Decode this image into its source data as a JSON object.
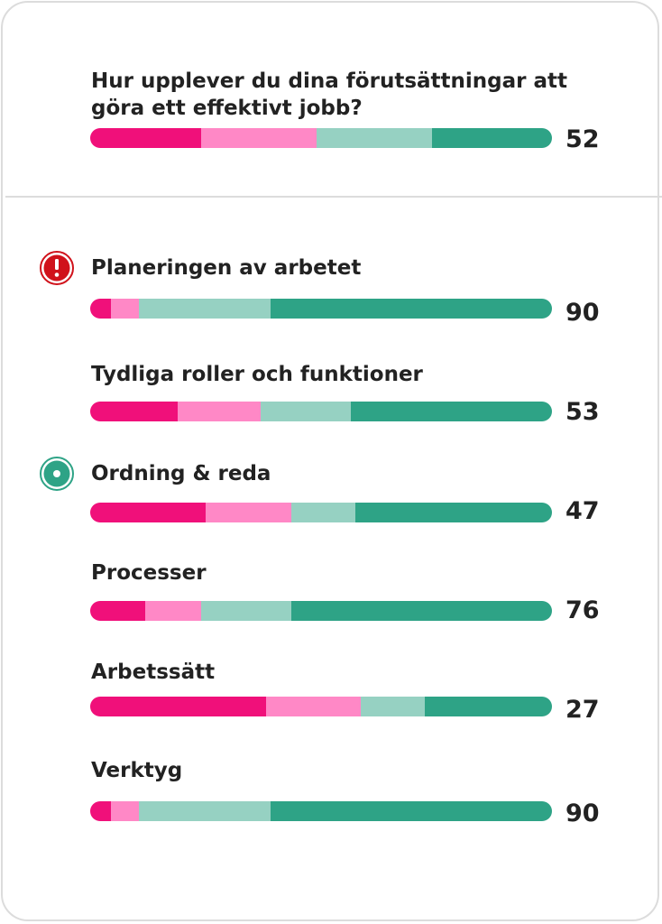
{
  "colors": {
    "very_negative": "#f0107a",
    "negative": "#ff88c6",
    "positive": "#96d1c2",
    "very_positive": "#2ea386",
    "alert": "#d0121b",
    "highlight": "#2ea386"
  },
  "question": {
    "title": "Hur upplever du dina förutsättningar att göra ett effektivt jobb?",
    "score": "52",
    "distribution": [
      24,
      25,
      25,
      26
    ]
  },
  "items": [
    {
      "label": "Planeringen av arbetet",
      "score": "90",
      "icon": "alert-icon",
      "distribution": [
        4.5,
        6,
        28.5,
        61
      ]
    },
    {
      "label": "Tydliga roller och funktioner",
      "score": "53",
      "icon": "",
      "distribution": [
        19,
        18,
        19.5,
        43.5
      ]
    },
    {
      "label": "Ordning & reda",
      "score": "47",
      "icon": "target-icon",
      "distribution": [
        25,
        18.5,
        14,
        42.5
      ]
    },
    {
      "label": "Processer",
      "score": "76",
      "icon": "",
      "distribution": [
        12,
        12,
        19.5,
        56.5
      ]
    },
    {
      "label": "Arbetssätt",
      "score": "27",
      "icon": "",
      "distribution": [
        38,
        20.5,
        14,
        27.5
      ]
    },
    {
      "label": "Verktyg",
      "score": "90",
      "icon": "",
      "distribution": [
        4.5,
        6,
        28.5,
        61
      ]
    }
  ]
}
